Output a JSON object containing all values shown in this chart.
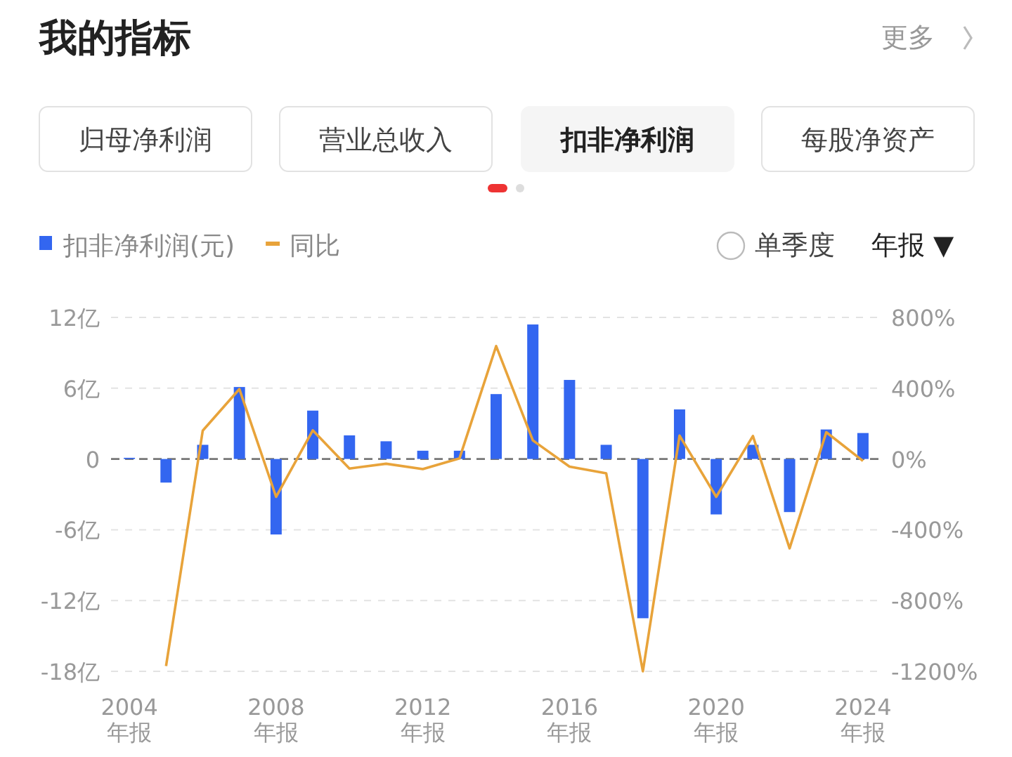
{
  "chart_data": {
    "type": "bar",
    "title": "我的指标",
    "annotations": [
      "更多",
      "归母净利润",
      "营业总收入",
      "扣非净利润",
      "每股净资产",
      "单季度",
      "年报 ▼"
    ],
    "categories": [
      "2004 年报",
      null,
      null,
      null,
      "2008 年报",
      null,
      null,
      null,
      "2012 年报",
      null,
      null,
      null,
      "2016 年报",
      null,
      null,
      null,
      "2020 年报",
      null,
      null,
      null,
      "2024 年报"
    ],
    "series": [
      {
        "name": "扣非净利润(元)",
        "color": "#3366f0",
        "values": [
          0.1,
          -2.0,
          1.2,
          6.1,
          -6.4,
          4.1,
          2.0,
          1.5,
          0.7,
          0.7,
          5.5,
          11.4,
          6.7,
          1.2,
          -13.5,
          4.2,
          -4.7,
          1.2,
          -4.5,
          2.5,
          2.2
        ]
      },
      {
        "name": "同比",
        "type": "line",
        "axis": "y2",
        "color": "#e8a33a",
        "values": [
          null,
          -1170,
          160,
          395,
          -214,
          162,
          -54,
          -27,
          -57,
          3,
          638,
          105,
          -43,
          -81,
          -1200,
          132,
          -214,
          130,
          -505,
          151,
          -11
        ]
      }
    ],
    "ref_lines": [
      {
        "axis": "y",
        "value": 0,
        "color": "#777777",
        "line_style": "dashed"
      }
    ],
    "ylim": [
      -18,
      12
    ],
    "yticks": [
      {
        "value": -18,
        "label": "-18亿"
      },
      {
        "value": -12,
        "label": "-12亿"
      },
      {
        "value": -6,
        "label": "-6亿"
      },
      0,
      {
        "value": 6,
        "label": "6亿"
      },
      {
        "value": 12,
        "label": "12亿"
      }
    ],
    "y2lim": [
      -1200,
      800
    ],
    "y2ticks": [
      {
        "value": -1200,
        "label": "-1200%"
      },
      {
        "value": -800,
        "label": "-800%"
      },
      {
        "value": -400,
        "label": "-400%"
      },
      {
        "value": 0,
        "label": "0%"
      },
      {
        "value": 400,
        "label": "400%"
      },
      {
        "value": 800,
        "label": "800%"
      }
    ],
    "grid": "y",
    "legend": "top left",
    "marker": "none",
    "line_style": "solid"
  }
}
